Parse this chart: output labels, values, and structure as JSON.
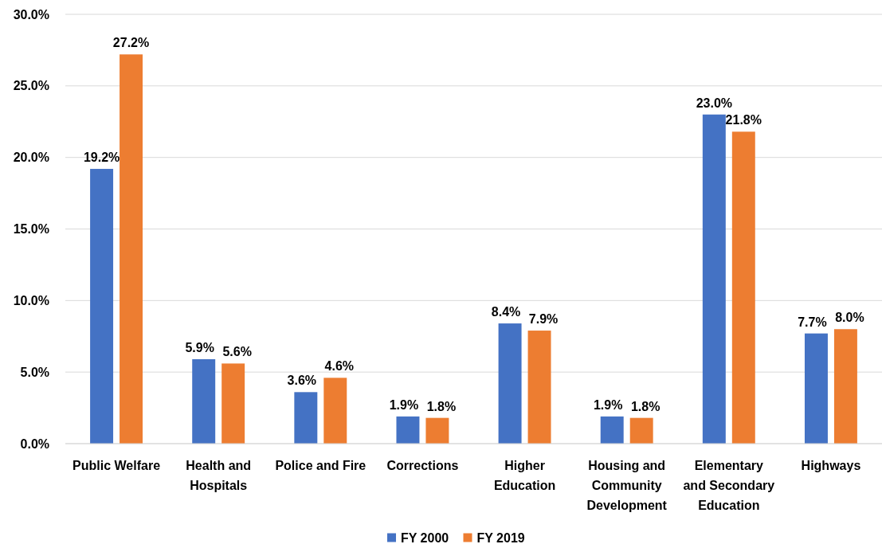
{
  "chart_data": {
    "type": "bar",
    "categories": [
      "Public Welfare",
      "Health and Hospitals",
      "Police and Fire",
      "Corrections",
      "Higher Education",
      "Housing and Community Development",
      "Elementary and Secondary Education",
      "Highways"
    ],
    "series": [
      {
        "name": "FY 2000",
        "color": "#4472c4",
        "values": [
          19.2,
          5.9,
          3.6,
          1.9,
          8.4,
          1.9,
          23.0,
          7.7
        ],
        "value_labels": [
          "19.2%",
          "5.9%",
          "3.6%",
          "1.9%",
          "8.4%",
          "1.9%",
          "23.0%",
          "7.7%"
        ]
      },
      {
        "name": "FY 2019",
        "color": "#ed7d31",
        "values": [
          27.2,
          5.6,
          4.6,
          1.8,
          7.9,
          1.8,
          21.8,
          8.0
        ],
        "value_labels": [
          "27.2%",
          "5.6%",
          "4.6%",
          "1.8%",
          "7.9%",
          "1.8%",
          "21.8%",
          "8.0%"
        ]
      }
    ],
    "ylim": [
      0,
      30
    ],
    "yticks": [
      {
        "value": 0,
        "label": "0.0%"
      },
      {
        "value": 5,
        "label": "5.0%"
      },
      {
        "value": 10,
        "label": "10.0%"
      },
      {
        "value": 15,
        "label": "15.0%"
      },
      {
        "value": 20,
        "label": "20.0%"
      },
      {
        "value": 25,
        "label": "25.0%"
      },
      {
        "value": 30,
        "label": "30.0%"
      }
    ],
    "grid": "y",
    "legend": "bottom"
  }
}
